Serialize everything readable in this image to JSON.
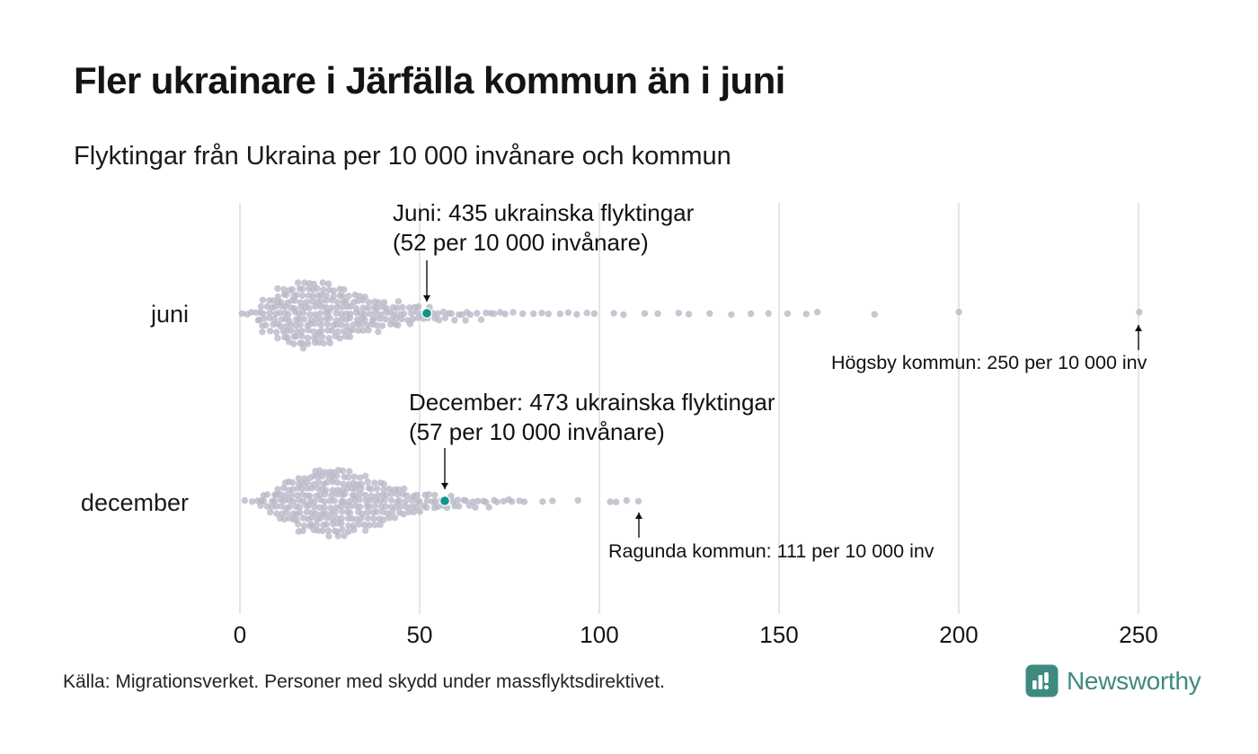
{
  "header": {
    "title": "Fler ukrainare i Järfälla kommun än i juni",
    "subtitle": "Flyktingar från Ukraina per 10 000 invånare och kommun"
  },
  "footer": {
    "source": "Källa: Migrationsverket. Personer med skydd under massflyktsdirektivet.",
    "brand": "Newsworthy"
  },
  "colors": {
    "dot": "#b9b8c8",
    "highlight": "#0e9488",
    "brand_teal": "#3f8a80",
    "grid": "#dadada",
    "arrow": "#111111",
    "text": "#1a1a1a"
  },
  "chart_data": {
    "type": "beeswarm",
    "title": "Fler ukrainare i Järfälla kommun än i juni",
    "subtitle": "Flyktingar från Ukraina per 10 000 invånare och kommun",
    "unit": "flyktingar per 10 000 invånare och kommun",
    "x_axis": {
      "min": 0,
      "max": 250,
      "ticks": [
        "0",
        "50",
        "100",
        "150",
        "200",
        "250"
      ],
      "grid": true
    },
    "rows": [
      {
        "label": "juni",
        "histogram": {
          "bin_width": 5,
          "start": 0,
          "counts": [
            4,
            20,
            35,
            40,
            38,
            32,
            25,
            20,
            15,
            12,
            8,
            6,
            5,
            4,
            3,
            2,
            2,
            2,
            2,
            2
          ]
        },
        "outliers": [
          104,
          107,
          113,
          116,
          122,
          125,
          131,
          137,
          142,
          147,
          152,
          158,
          161,
          177,
          200,
          250
        ],
        "highlight": {
          "value": 52,
          "label_line1": "Juni: 435 ukrainska flyktingar",
          "label_line2": "(52 per 10 000 invånare)"
        },
        "max_value": 250,
        "max_label": "Högsby kommun: 250 per 10 000 inv"
      },
      {
        "label": "december",
        "histogram": {
          "bin_width": 5,
          "start": 0,
          "counts": [
            2,
            12,
            25,
            35,
            40,
            42,
            35,
            28,
            20,
            15,
            10,
            8,
            6,
            5,
            4,
            3
          ]
        },
        "outliers": [
          84,
          87,
          94,
          103,
          105,
          108,
          111
        ],
        "highlight": {
          "value": 57,
          "label_line1": "December: 473 ukrainska flyktingar",
          "label_line2": "(57 per 10 000 invånare)"
        },
        "max_value": 111,
        "max_label": "Ragunda kommun: 111 per 10 000 inv"
      }
    ]
  }
}
